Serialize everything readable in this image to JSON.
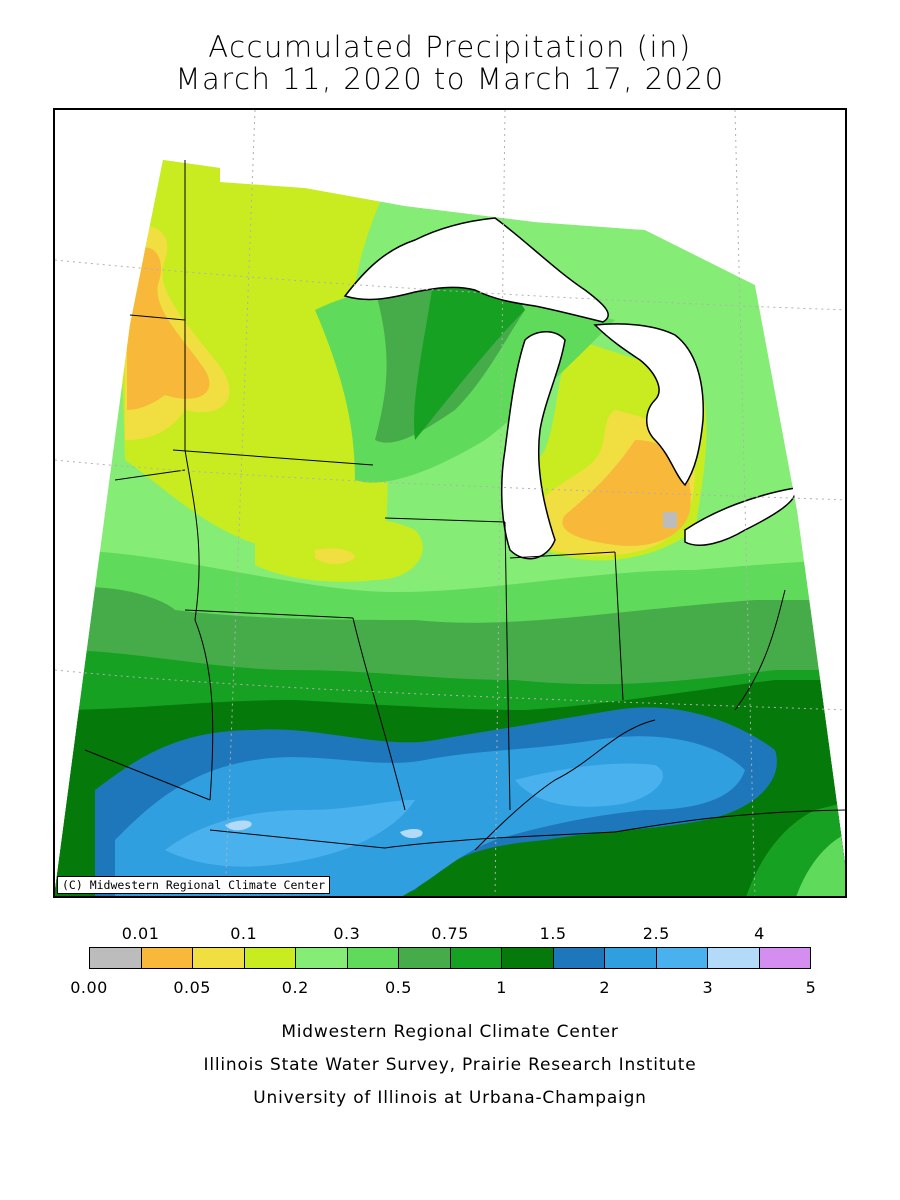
{
  "title": {
    "line1": "Accumulated Precipitation (in)",
    "line2": "March 11, 2020 to March 17, 2020"
  },
  "map": {
    "copyright": "(C) Midwestern Regional Climate Center"
  },
  "legend": {
    "colors": [
      "#bcbcbc",
      "#f8b93b",
      "#f1de40",
      "#c8ec1f",
      "#85ec76",
      "#60da5a",
      "#46ac4a",
      "#17a122",
      "#057a0a",
      "#1d77ba",
      "#309fe0",
      "#49b2ee",
      "#b3daf9",
      "#d38ef0"
    ],
    "top_labels": [
      "0.01",
      "0.1",
      "0.3",
      "0.75",
      "1.5",
      "2.5",
      "4"
    ],
    "bottom_labels": [
      "0.00",
      "0.05",
      "0.2",
      "0.5",
      "1",
      "2",
      "3",
      "5"
    ]
  },
  "credits": {
    "line1": "Midwestern Regional Climate Center",
    "line2": "Illinois State Water Survey, Prairie Research Institute",
    "line3": "University of Illinois at Urbana-Champaign"
  }
}
